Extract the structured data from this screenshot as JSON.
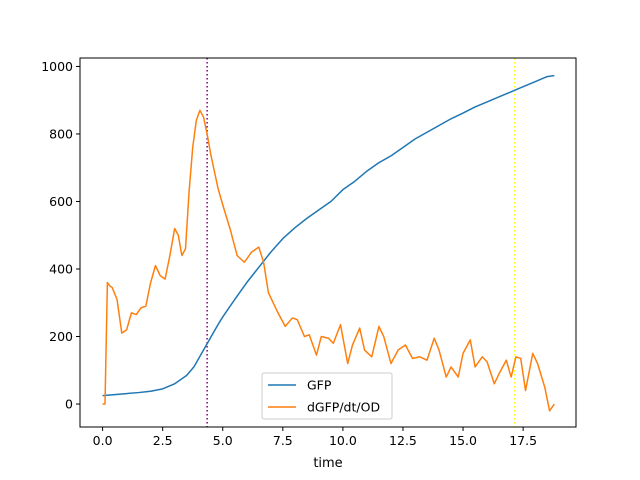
{
  "chart_data": {
    "type": "line",
    "title": "",
    "xlabel": "time",
    "ylabel": "",
    "xlim": [
      -0.94,
      19.7
    ],
    "ylim": [
      -68,
      1025
    ],
    "xticks": [
      0,
      2.5,
      5,
      7.5,
      10,
      12.5,
      15,
      17.5
    ],
    "xtick_labels": [
      "0.0",
      "2.5",
      "5.0",
      "7.5",
      "10.0",
      "12.5",
      "15.0",
      "17.5"
    ],
    "yticks": [
      0,
      200,
      400,
      600,
      800,
      1000
    ],
    "ytick_labels": [
      "0",
      "200",
      "400",
      "600",
      "800",
      "1000"
    ],
    "grid": false,
    "legend": "lower center",
    "vlines": [
      {
        "x": 4.35,
        "color": "#800080",
        "style": "dotted"
      },
      {
        "x": 17.15,
        "color": "#ffff00",
        "style": "dotted"
      }
    ],
    "series": [
      {
        "name": "GFP",
        "color": "#1f77b4",
        "x": [
          0.0,
          0.5,
          1.0,
          1.5,
          2.0,
          2.5,
          3.0,
          3.5,
          3.8,
          4.0,
          4.2,
          4.4,
          4.6,
          4.8,
          5.0,
          5.5,
          6.0,
          6.5,
          7.0,
          7.5,
          8.0,
          8.5,
          9.0,
          9.5,
          10.0,
          10.5,
          11.0,
          11.5,
          12.0,
          12.5,
          13.0,
          13.5,
          14.0,
          14.5,
          15.0,
          15.5,
          16.0,
          16.5,
          17.0,
          17.5,
          18.0,
          18.5,
          18.8
        ],
        "y": [
          25,
          28,
          31,
          34,
          38,
          45,
          60,
          85,
          110,
          135,
          160,
          185,
          210,
          235,
          258,
          310,
          360,
          405,
          450,
          490,
          522,
          550,
          575,
          600,
          635,
          660,
          690,
          715,
          735,
          760,
          785,
          805,
          825,
          845,
          862,
          880,
          895,
          910,
          925,
          940,
          955,
          970,
          973
        ]
      },
      {
        "name": "dGFP/dt/OD",
        "color": "#ff7f0e",
        "x": [
          0.0,
          0.1,
          0.2,
          0.3,
          0.4,
          0.6,
          0.8,
          1.0,
          1.2,
          1.4,
          1.6,
          1.8,
          2.0,
          2.2,
          2.4,
          2.6,
          2.8,
          3.0,
          3.15,
          3.3,
          3.45,
          3.6,
          3.75,
          3.9,
          4.05,
          4.2,
          4.35,
          4.5,
          4.65,
          4.8,
          5.0,
          5.3,
          5.6,
          5.9,
          6.2,
          6.5,
          6.7,
          6.9,
          7.1,
          7.3,
          7.6,
          7.9,
          8.1,
          8.4,
          8.6,
          8.9,
          9.1,
          9.4,
          9.6,
          9.9,
          10.2,
          10.4,
          10.7,
          10.9,
          11.2,
          11.5,
          11.7,
          12.0,
          12.3,
          12.6,
          12.9,
          13.2,
          13.5,
          13.8,
          14.0,
          14.3,
          14.5,
          14.8,
          15.0,
          15.3,
          15.5,
          15.8,
          16.0,
          16.3,
          16.5,
          16.8,
          17.0,
          17.2,
          17.4,
          17.6,
          17.9,
          18.1,
          18.4,
          18.6,
          18.8
        ],
        "y": [
          0,
          0,
          360,
          350,
          345,
          310,
          210,
          220,
          270,
          265,
          285,
          290,
          360,
          410,
          380,
          370,
          440,
          520,
          500,
          440,
          460,
          630,
          760,
          840,
          870,
          850,
          800,
          740,
          690,
          640,
          590,
          520,
          440,
          420,
          450,
          465,
          420,
          330,
          300,
          270,
          230,
          255,
          250,
          200,
          205,
          145,
          200,
          195,
          180,
          235,
          120,
          175,
          225,
          160,
          140,
          230,
          200,
          120,
          160,
          175,
          135,
          140,
          130,
          195,
          160,
          80,
          110,
          80,
          150,
          190,
          110,
          140,
          125,
          60,
          90,
          130,
          80,
          140,
          135,
          40,
          150,
          120,
          50,
          -20,
          0
        ]
      }
    ]
  }
}
